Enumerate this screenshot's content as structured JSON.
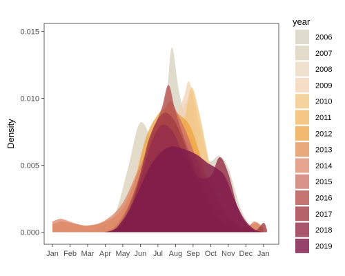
{
  "chart_data": {
    "type": "area",
    "ylabel": "Density",
    "xlabel": "",
    "title": "",
    "x_ticks": [
      "Jan",
      "Feb",
      "Mar",
      "Apr",
      "May",
      "Jun",
      "Jul",
      "Aug",
      "Sep",
      "Oct",
      "Nov",
      "Dec",
      "Jan"
    ],
    "xlim": [
      0,
      12.4
    ],
    "ylim": [
      -0.0009,
      0.0156
    ],
    "y_ticks": [
      0.0,
      0.005,
      0.01,
      0.015
    ],
    "y_tick_labels": [
      "0.000",
      "0.005",
      "0.010",
      "0.015"
    ],
    "grid": false,
    "legend": {
      "title": "year",
      "position": "right"
    },
    "series": [
      {
        "name": "2006",
        "color": "#d9d6c4",
        "opacity": 0.85,
        "points": [
          [
            0,
            0
          ],
          [
            1,
            0
          ],
          [
            2,
            0.0001
          ],
          [
            3,
            0.0006
          ],
          [
            4,
            0.0018
          ],
          [
            5,
            0.0052
          ],
          [
            6,
            0.0074
          ],
          [
            6.5,
            0.0105
          ],
          [
            6.8,
            0.0138
          ],
          [
            7.2,
            0.0105
          ],
          [
            7.8,
            0.0072
          ],
          [
            8.3,
            0.0055
          ],
          [
            9,
            0.0053
          ],
          [
            9.5,
            0.0057
          ],
          [
            10,
            0.0048
          ],
          [
            10.7,
            0.0018
          ],
          [
            11.3,
            0.0005
          ],
          [
            12,
            0.0001
          ]
        ]
      },
      {
        "name": "2007",
        "color": "#ddd3bd",
        "opacity": 0.8,
        "points": [
          [
            0,
            0
          ],
          [
            1.5,
            0
          ],
          [
            2.5,
            0.0002
          ],
          [
            3.5,
            0.0012
          ],
          [
            4.3,
            0.0048
          ],
          [
            5,
            0.0082
          ],
          [
            5.8,
            0.0065
          ],
          [
            6.5,
            0.0057
          ],
          [
            7.2,
            0.0062
          ],
          [
            8,
            0.0056
          ],
          [
            8.7,
            0.0038
          ],
          [
            9.3,
            0.0022
          ],
          [
            10,
            0.0008
          ],
          [
            11,
            0.0002
          ],
          [
            12,
            0
          ]
        ]
      },
      {
        "name": "2008",
        "color": "#ebd5be",
        "opacity": 0.75,
        "points": [
          [
            0,
            0
          ],
          [
            2,
            0
          ],
          [
            3,
            0.0004
          ],
          [
            4,
            0.002
          ],
          [
            5,
            0.0058
          ],
          [
            6,
            0.0078
          ],
          [
            7,
            0.0082
          ],
          [
            7.8,
            0.0098
          ],
          [
            8.4,
            0.006
          ],
          [
            9,
            0.004
          ],
          [
            9.5,
            0.0048
          ],
          [
            10,
            0.0036
          ],
          [
            10.7,
            0.0012
          ],
          [
            11.5,
            0.0003
          ],
          [
            12,
            0
          ]
        ]
      },
      {
        "name": "2009",
        "color": "#f2d2b4",
        "opacity": 0.75,
        "points": [
          [
            0,
            0
          ],
          [
            2.5,
            0
          ],
          [
            3.5,
            0.0006
          ],
          [
            4.5,
            0.0024
          ],
          [
            5.5,
            0.0055
          ],
          [
            6.3,
            0.0062
          ],
          [
            7,
            0.0085
          ],
          [
            7.5,
            0.0102
          ],
          [
            7.8,
            0.0112
          ],
          [
            8.4,
            0.0078
          ],
          [
            9,
            0.005
          ],
          [
            9.5,
            0.0052
          ],
          [
            10.2,
            0.0024
          ],
          [
            11,
            0.0006
          ],
          [
            12,
            0
          ]
        ]
      },
      {
        "name": "2010",
        "color": "#f1c47e",
        "opacity": 0.75,
        "points": [
          [
            0,
            0
          ],
          [
            2,
            0
          ],
          [
            3,
            0.0004
          ],
          [
            4,
            0.0014
          ],
          [
            5,
            0.0035
          ],
          [
            6,
            0.006
          ],
          [
            7,
            0.0072
          ],
          [
            7.5,
            0.0085
          ],
          [
            7.9,
            0.0108
          ],
          [
            8.3,
            0.0092
          ],
          [
            8.8,
            0.006
          ],
          [
            9.3,
            0.0025
          ],
          [
            10,
            0.0006
          ],
          [
            11,
            0.0001
          ],
          [
            12,
            0
          ]
        ]
      },
      {
        "name": "2011",
        "color": "#f2b45c",
        "opacity": 0.75,
        "points": [
          [
            0,
            0
          ],
          [
            2.5,
            0
          ],
          [
            3.5,
            0.0005
          ],
          [
            4.5,
            0.0022
          ],
          [
            5.5,
            0.0052
          ],
          [
            6.3,
            0.0068
          ],
          [
            7,
            0.0064
          ],
          [
            7.7,
            0.0072
          ],
          [
            8.2,
            0.006
          ],
          [
            9,
            0.0036
          ],
          [
            9.8,
            0.0014
          ],
          [
            10.5,
            0.0004
          ],
          [
            11.5,
            0
          ],
          [
            12,
            0
          ]
        ]
      },
      {
        "name": "2012",
        "color": "#eea240",
        "opacity": 0.75,
        "points": [
          [
            0,
            0
          ],
          [
            2.8,
            0
          ],
          [
            3.6,
            0.0006
          ],
          [
            4.5,
            0.003
          ],
          [
            5.3,
            0.007
          ],
          [
            6,
            0.0088
          ],
          [
            6.6,
            0.0094
          ],
          [
            7.2,
            0.0088
          ],
          [
            7.8,
            0.008
          ],
          [
            8.3,
            0.0062
          ],
          [
            9,
            0.003
          ],
          [
            9.7,
            0.001
          ],
          [
            10.5,
            0.0002
          ],
          [
            12,
            0
          ]
        ]
      },
      {
        "name": "2013",
        "color": "#e4945c",
        "opacity": 0.8,
        "points": [
          [
            0,
            0.0006
          ],
          [
            0.5,
            0.0008
          ],
          [
            1,
            0.0007
          ],
          [
            2,
            0.0005
          ],
          [
            3,
            0.0008
          ],
          [
            4,
            0.0018
          ],
          [
            5,
            0.0048
          ],
          [
            5.8,
            0.007
          ],
          [
            6.5,
            0.0078
          ],
          [
            7.3,
            0.0072
          ],
          [
            8,
            0.006
          ],
          [
            8.8,
            0.0038
          ],
          [
            9.5,
            0.002
          ],
          [
            10.3,
            0.0008
          ],
          [
            11,
            0.0004
          ],
          [
            11.6,
            0.0007
          ],
          [
            12,
            0.0003
          ]
        ]
      },
      {
        "name": "2014",
        "color": "#db8569",
        "opacity": 0.75,
        "points": [
          [
            0,
            0.0008
          ],
          [
            0.5,
            0.001
          ],
          [
            1.2,
            0.0007
          ],
          [
            2,
            0.0005
          ],
          [
            3,
            0.0009
          ],
          [
            4,
            0.0022
          ],
          [
            5,
            0.005
          ],
          [
            6,
            0.0076
          ],
          [
            6.7,
            0.0082
          ],
          [
            7.4,
            0.0074
          ],
          [
            8.2,
            0.0056
          ],
          [
            9,
            0.0034
          ],
          [
            9.7,
            0.0016
          ],
          [
            10.4,
            0.0006
          ],
          [
            11,
            0.0003
          ],
          [
            11.5,
            0.0008
          ],
          [
            12,
            0.0003
          ]
        ]
      },
      {
        "name": "2015",
        "color": "#cc6e62",
        "opacity": 0.75,
        "points": [
          [
            0,
            0
          ],
          [
            2.8,
            0
          ],
          [
            3.8,
            0.0008
          ],
          [
            4.7,
            0.0032
          ],
          [
            5.5,
            0.0066
          ],
          [
            6.2,
            0.0086
          ],
          [
            6.7,
            0.0098
          ],
          [
            7.1,
            0.0089
          ],
          [
            7.7,
            0.0072
          ],
          [
            8.4,
            0.0046
          ],
          [
            9.2,
            0.0022
          ],
          [
            10,
            0.0006
          ],
          [
            11,
            0.0001
          ],
          [
            12,
            0
          ]
        ]
      },
      {
        "name": "2016",
        "color": "#b5524f",
        "opacity": 0.8,
        "points": [
          [
            0,
            0
          ],
          [
            3,
            0
          ],
          [
            3.9,
            0.0008
          ],
          [
            4.8,
            0.0036
          ],
          [
            5.6,
            0.0072
          ],
          [
            6.2,
            0.0092
          ],
          [
            6.6,
            0.011
          ],
          [
            7,
            0.009
          ],
          [
            7.6,
            0.0066
          ],
          [
            8.3,
            0.0042
          ],
          [
            9,
            0.0022
          ],
          [
            9.8,
            0.0008
          ],
          [
            10.8,
            0.0001
          ],
          [
            12,
            0
          ]
        ]
      },
      {
        "name": "2017",
        "color": "#a33c44",
        "opacity": 0.8,
        "points": [
          [
            0,
            0
          ],
          [
            3,
            0
          ],
          [
            4,
            0.0008
          ],
          [
            4.8,
            0.0034
          ],
          [
            5.5,
            0.007
          ],
          [
            6.2,
            0.0088
          ],
          [
            6.8,
            0.0086
          ],
          [
            7.4,
            0.007
          ],
          [
            8.1,
            0.0044
          ],
          [
            8.8,
            0.0022
          ],
          [
            9.6,
            0.0008
          ],
          [
            10.5,
            0.0002
          ],
          [
            11.5,
            0.0001
          ],
          [
            12,
            0.0007
          ],
          [
            12.2,
            0.0002
          ]
        ]
      },
      {
        "name": "2018",
        "color": "#942c48",
        "opacity": 0.8,
        "points": [
          [
            0,
            0
          ],
          [
            3.2,
            0
          ],
          [
            4.2,
            0.001
          ],
          [
            5,
            0.004
          ],
          [
            5.6,
            0.0066
          ],
          [
            6.2,
            0.008
          ],
          [
            6.8,
            0.0076
          ],
          [
            7.4,
            0.006
          ],
          [
            8.2,
            0.0042
          ],
          [
            9,
            0.0042
          ],
          [
            9.5,
            0.0056
          ],
          [
            10,
            0.0044
          ],
          [
            10.6,
            0.0016
          ],
          [
            11.3,
            0.0003
          ],
          [
            12,
            0
          ]
        ]
      },
      {
        "name": "2019",
        "color": "#7f1a4b",
        "opacity": 0.82,
        "points": [
          [
            0,
            0
          ],
          [
            3,
            0
          ],
          [
            4,
            0.0009
          ],
          [
            4.8,
            0.0028
          ],
          [
            5.5,
            0.0048
          ],
          [
            6.2,
            0.006
          ],
          [
            6.8,
            0.0064
          ],
          [
            7.5,
            0.0062
          ],
          [
            8.2,
            0.0058
          ],
          [
            8.8,
            0.0052
          ],
          [
            9.3,
            0.0048
          ],
          [
            9.8,
            0.0042
          ],
          [
            10.3,
            0.0026
          ],
          [
            10.9,
            0.001
          ],
          [
            11.5,
            0.0002
          ],
          [
            12,
            0
          ]
        ]
      }
    ]
  }
}
